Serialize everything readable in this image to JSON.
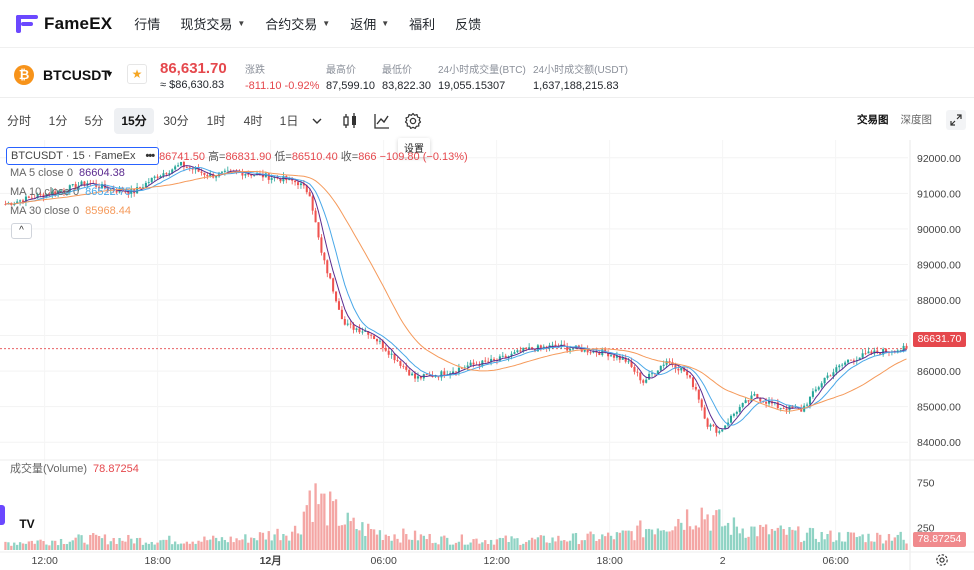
{
  "brand": {
    "name": "FameEX",
    "accent": "#6b48ff"
  },
  "nav": {
    "items": [
      {
        "label": "行情",
        "dropdown": false
      },
      {
        "label": "现货交易",
        "dropdown": true
      },
      {
        "label": "合约交易",
        "dropdown": true
      },
      {
        "label": "返佣",
        "dropdown": true
      },
      {
        "label": "福利",
        "dropdown": false
      },
      {
        "label": "反馈",
        "dropdown": false
      }
    ]
  },
  "ticker": {
    "coin_letter": "₿",
    "symbol": "BTCUSDT",
    "last_price": "86,631.70",
    "last_price_fiat": "≈ $86,630.83",
    "stats": [
      {
        "label": "涨跌",
        "value": "-811.10 -0.92%",
        "negative": true
      },
      {
        "label": "最高价",
        "value": "87,599.10",
        "negative": false
      },
      {
        "label": "最低价",
        "value": "83,822.30",
        "negative": false
      },
      {
        "label": "24小时成交量(BTC)",
        "value": "19,055.15307",
        "negative": false
      },
      {
        "label": "24小时成交额(USDT)",
        "value": "1,637,188,215.83",
        "negative": false
      }
    ]
  },
  "toolbar": {
    "timeframes": [
      "分时",
      "1分",
      "5分",
      "15分",
      "30分",
      "1时",
      "4时",
      "1日"
    ],
    "active_timeframe": "15分",
    "tooltip": "设置",
    "view_tabs": [
      "交易图",
      "深度图"
    ],
    "active_view": "交易图"
  },
  "legend": {
    "symbol_text": "BTCUSDT · 15 · FameEx",
    "dots": "•••",
    "ohlc_text": "86741.50 ",
    "high_label": "高=",
    "high": "86831.90",
    "low_label": " 低=",
    "low": "86510.40",
    "close_label": " 收=",
    "close": "866",
    "change": " −109.80 (−0.13%)",
    "ma": [
      {
        "label": "MA 5 close 0",
        "value": "86604.38",
        "color": "#5b2b8f"
      },
      {
        "label": "MA 10 close 0",
        "value": "86522.75",
        "color": "#4aa8e8"
      },
      {
        "label": "MA 30 close 0",
        "value": "85968.44",
        "color": "#f59a5b"
      }
    ],
    "volume_label": "成交量(Volume)",
    "volume_value": "78.87254",
    "collapse_glyph": "^"
  },
  "price_axis": [
    "92000.00",
    "91000.00",
    "90000.00",
    "89000.00",
    "88000.00",
    "87000.00",
    "86000.00",
    "85000.00",
    "84000.00"
  ],
  "volume_axis": [
    "750",
    "250"
  ],
  "current_price_tag": "86631.70",
  "current_volume_tag": "78.87254",
  "time_axis": [
    "12:00",
    "18:00",
    "12月",
    "06:00",
    "12:00",
    "18:00",
    "2",
    "06:00"
  ],
  "tv_logo": "TV",
  "colors": {
    "up": "#26a69a",
    "down": "#ef5350",
    "up_vol": "#8fd3c4",
    "down_vol": "#f4a6a4",
    "ma5": "#5b2b8f",
    "ma10": "#4aa8e8",
    "ma30": "#f59a5b"
  },
  "chart_data": {
    "type": "candlestick",
    "interval": "15m",
    "ylim": [
      83500,
      92500
    ],
    "volume_ylim": [
      0,
      1000
    ],
    "price_path": [
      [
        0,
        90700
      ],
      [
        10,
        90900
      ],
      [
        20,
        91100
      ],
      [
        28,
        91300
      ],
      [
        36,
        91100
      ],
      [
        44,
        91050
      ],
      [
        52,
        91500
      ],
      [
        60,
        91800
      ],
      [
        70,
        91500
      ],
      [
        80,
        91600
      ],
      [
        95,
        91400
      ],
      [
        100,
        91300
      ],
      [
        104,
        91000
      ],
      [
        108,
        89300
      ],
      [
        112,
        88300
      ],
      [
        116,
        87300
      ],
      [
        124,
        87100
      ],
      [
        128,
        86800
      ],
      [
        134,
        86300
      ],
      [
        140,
        85800
      ],
      [
        148,
        85900
      ],
      [
        158,
        86150
      ],
      [
        168,
        86300
      ],
      [
        178,
        86600
      ],
      [
        188,
        86700
      ],
      [
        198,
        86600
      ],
      [
        206,
        86500
      ],
      [
        212,
        86300
      ],
      [
        218,
        85700
      ],
      [
        226,
        86300
      ],
      [
        232,
        86000
      ],
      [
        236,
        85500
      ],
      [
        240,
        84500
      ],
      [
        244,
        84300
      ],
      [
        250,
        84900
      ],
      [
        256,
        85300
      ],
      [
        264,
        85000
      ],
      [
        272,
        84900
      ],
      [
        280,
        85800
      ],
      [
        288,
        86300
      ],
      [
        296,
        86500
      ],
      [
        304,
        86600
      ],
      [
        308,
        86631
      ]
    ],
    "volume_levels": [
      [
        0,
        90
      ],
      [
        30,
        140
      ],
      [
        50,
        120
      ],
      [
        80,
        130
      ],
      [
        100,
        250
      ],
      [
        104,
        700
      ],
      [
        110,
        520
      ],
      [
        118,
        300
      ],
      [
        130,
        200
      ],
      [
        150,
        130
      ],
      [
        180,
        120
      ],
      [
        210,
        170
      ],
      [
        225,
        330
      ],
      [
        238,
        480
      ],
      [
        246,
        300
      ],
      [
        260,
        230
      ],
      [
        280,
        170
      ],
      [
        300,
        160
      ],
      [
        305,
        200
      ],
      [
        308,
        79
      ]
    ],
    "ma_periods": [
      5,
      10,
      30
    ],
    "ma_values_last": [
      86604.38,
      86522.75,
      85968.44
    ]
  }
}
